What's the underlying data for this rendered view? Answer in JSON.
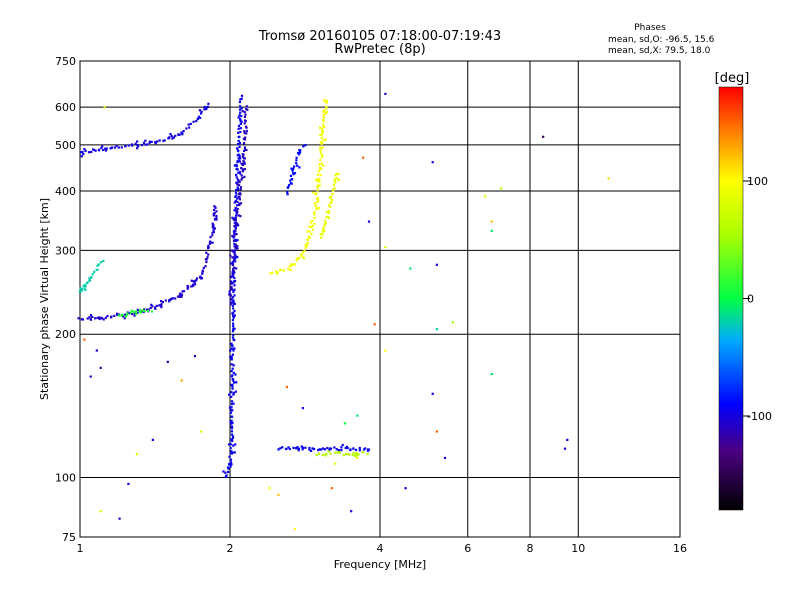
{
  "chart_data": {
    "type": "scatter",
    "title": "Tromsø 20160105 07:18:00-07:19:43",
    "subtitle": "RwPretec (8p)",
    "xlabel": "Frequency [MHz]",
    "ylabel": "Stationary phase Virtual Height [km]",
    "x_scale": "log",
    "y_scale": "log",
    "xlim": [
      1,
      16
    ],
    "ylim": [
      75,
      750
    ],
    "x_ticks": [
      {
        "value": 1,
        "label": "1"
      },
      {
        "value": 2,
        "label": "2"
      },
      {
        "value": 4,
        "label": "4"
      },
      {
        "value": 6,
        "label": "6"
      },
      {
        "value": 8,
        "label": "8"
      },
      {
        "value": 10,
        "label": "10"
      },
      {
        "value": 16,
        "label": "16"
      }
    ],
    "y_ticks": [
      {
        "value": 75,
        "label": "75"
      },
      {
        "value": 100,
        "label": "100"
      },
      {
        "value": 200,
        "label": "200"
      },
      {
        "value": 300,
        "label": "300"
      },
      {
        "value": 400,
        "label": "400"
      },
      {
        "value": 500,
        "label": "500"
      },
      {
        "value": 600,
        "label": "600"
      },
      {
        "value": 750,
        "label": "750"
      }
    ],
    "grid": true,
    "colorbar": {
      "label": "[deg]",
      "range": [
        -180,
        180
      ],
      "ticks": [
        {
          "value": 100,
          "label": "100"
        },
        {
          "value": 0,
          "label": "0"
        },
        {
          "value": -100,
          "label": "-100"
        }
      ]
    },
    "stats": {
      "header": "Phases",
      "line1": "mean, sd,O: -96.5, 15.6",
      "line2": "mean, sd,X:  79.5, 18.0"
    },
    "traces": [
      {
        "phase": -105,
        "points": [
          [
            1.0,
            215
          ],
          [
            1.05,
            216
          ],
          [
            1.1,
            217
          ],
          [
            1.15,
            218
          ],
          [
            1.2,
            219
          ],
          [
            1.25,
            221
          ],
          [
            1.3,
            223
          ],
          [
            1.35,
            225
          ],
          [
            1.4,
            228
          ],
          [
            1.45,
            231
          ],
          [
            1.5,
            235
          ],
          [
            1.55,
            239
          ],
          [
            1.6,
            244
          ],
          [
            1.65,
            250
          ],
          [
            1.7,
            258
          ],
          [
            1.75,
            268
          ],
          [
            1.78,
            280
          ],
          [
            1.8,
            295
          ],
          [
            1.82,
            312
          ],
          [
            1.84,
            330
          ],
          [
            1.86,
            350
          ],
          [
            1.88,
            375
          ]
        ]
      },
      {
        "phase": -100,
        "points": [
          [
            1.0,
            480
          ],
          [
            1.05,
            485
          ],
          [
            1.1,
            490
          ],
          [
            1.15,
            492
          ],
          [
            1.2,
            495
          ],
          [
            1.25,
            498
          ],
          [
            1.3,
            500
          ],
          [
            1.35,
            502
          ],
          [
            1.4,
            505
          ],
          [
            1.45,
            510
          ],
          [
            1.5,
            515
          ],
          [
            1.55,
            520
          ],
          [
            1.6,
            530
          ],
          [
            1.65,
            545
          ],
          [
            1.7,
            560
          ],
          [
            1.75,
            580
          ],
          [
            1.8,
            600
          ],
          [
            1.83,
            615
          ]
        ]
      },
      {
        "phase": -95,
        "points": [
          [
            1.95,
            100
          ],
          [
            1.97,
            102
          ],
          [
            2.0,
            105
          ],
          [
            2.02,
            120
          ],
          [
            2.03,
            250
          ],
          [
            2.04,
            300
          ],
          [
            2.05,
            350
          ],
          [
            2.06,
            400
          ],
          [
            2.07,
            450
          ],
          [
            2.08,
            500
          ],
          [
            2.09,
            550
          ],
          [
            2.1,
            600
          ],
          [
            2.11,
            640
          ]
        ]
      },
      {
        "phase": -110,
        "points": [
          [
            2.0,
            230
          ],
          [
            2.02,
            260
          ],
          [
            2.05,
            320
          ],
          [
            2.08,
            380
          ],
          [
            2.1,
            420
          ],
          [
            2.12,
            460
          ],
          [
            2.14,
            500
          ],
          [
            2.15,
            560
          ],
          [
            2.16,
            610
          ]
        ]
      },
      {
        "phase": 95,
        "points": [
          [
            2.45,
            270
          ],
          [
            2.55,
            273
          ],
          [
            2.65,
            278
          ],
          [
            2.72,
            285
          ],
          [
            2.78,
            293
          ],
          [
            2.82,
            300
          ],
          [
            2.86,
            312
          ],
          [
            2.9,
            325
          ],
          [
            2.93,
            340
          ],
          [
            2.96,
            360
          ],
          [
            2.98,
            380
          ],
          [
            3.0,
            405
          ],
          [
            3.02,
            430
          ],
          [
            3.04,
            460
          ],
          [
            3.06,
            500
          ],
          [
            3.08,
            540
          ],
          [
            3.1,
            580
          ],
          [
            3.12,
            630
          ]
        ]
      },
      {
        "phase": 90,
        "points": [
          [
            3.05,
            320
          ],
          [
            3.1,
            340
          ],
          [
            3.15,
            365
          ],
          [
            3.2,
            390
          ],
          [
            3.25,
            420
          ],
          [
            3.3,
            440
          ]
        ]
      },
      {
        "phase": -90,
        "points": [
          [
            2.6,
            400
          ],
          [
            2.65,
            420
          ],
          [
            2.7,
            450
          ],
          [
            2.75,
            480
          ],
          [
            2.8,
            500
          ]
        ]
      },
      {
        "phase": -95,
        "points": [
          [
            2.5,
            115
          ],
          [
            2.7,
            115
          ],
          [
            2.9,
            115
          ],
          [
            3.1,
            115
          ],
          [
            3.3,
            115
          ],
          [
            3.5,
            115
          ],
          [
            3.7,
            115
          ],
          [
            3.85,
            115
          ]
        ]
      },
      {
        "phase": 60,
        "points": [
          [
            3.0,
            112
          ],
          [
            3.2,
            113
          ],
          [
            3.4,
            112
          ],
          [
            3.6,
            112
          ],
          [
            3.8,
            113
          ]
        ]
      },
      {
        "phase": -20,
        "points": [
          [
            1.0,
            245
          ],
          [
            1.03,
            255
          ],
          [
            1.06,
            265
          ],
          [
            1.08,
            275
          ],
          [
            1.1,
            285
          ]
        ]
      },
      {
        "phase": 10,
        "points": [
          [
            1.2,
            220
          ],
          [
            1.3,
            222
          ],
          [
            1.4,
            224
          ]
        ]
      }
    ],
    "scatter": [
      {
        "x": 1.02,
        "y": 195,
        "phase": 150
      },
      {
        "x": 1.08,
        "y": 185,
        "phase": -100
      },
      {
        "x": 1.1,
        "y": 170,
        "phase": -120
      },
      {
        "x": 1.12,
        "y": 600,
        "phase": 80
      },
      {
        "x": 1.05,
        "y": 163,
        "phase": -110
      },
      {
        "x": 1.3,
        "y": 112,
        "phase": 90
      },
      {
        "x": 1.25,
        "y": 97,
        "phase": -100
      },
      {
        "x": 1.4,
        "y": 120,
        "phase": -100
      },
      {
        "x": 1.5,
        "y": 175,
        "phase": -110
      },
      {
        "x": 1.6,
        "y": 160,
        "phase": 130
      },
      {
        "x": 1.7,
        "y": 180,
        "phase": -110
      },
      {
        "x": 1.75,
        "y": 125,
        "phase": 80
      },
      {
        "x": 1.2,
        "y": 82,
        "phase": -110
      },
      {
        "x": 1.1,
        "y": 85,
        "phase": 80
      },
      {
        "x": 2.4,
        "y": 95,
        "phase": 100
      },
      {
        "x": 2.6,
        "y": 155,
        "phase": 150
      },
      {
        "x": 2.8,
        "y": 140,
        "phase": -100
      },
      {
        "x": 2.7,
        "y": 78,
        "phase": 100
      },
      {
        "x": 3.2,
        "y": 95,
        "phase": 150
      },
      {
        "x": 3.5,
        "y": 85,
        "phase": -100
      },
      {
        "x": 3.6,
        "y": 135,
        "phase": -10
      },
      {
        "x": 3.7,
        "y": 470,
        "phase": 150
      },
      {
        "x": 3.8,
        "y": 345,
        "phase": -100
      },
      {
        "x": 3.9,
        "y": 210,
        "phase": 150
      },
      {
        "x": 4.1,
        "y": 640,
        "phase": -110
      },
      {
        "x": 4.1,
        "y": 185,
        "phase": 100
      },
      {
        "x": 4.1,
        "y": 305,
        "phase": 80
      },
      {
        "x": 4.6,
        "y": 275,
        "phase": -10
      },
      {
        "x": 5.1,
        "y": 460,
        "phase": -100
      },
      {
        "x": 5.2,
        "y": 280,
        "phase": -100
      },
      {
        "x": 5.2,
        "y": 205,
        "phase": -20
      },
      {
        "x": 5.1,
        "y": 150,
        "phase": -100
      },
      {
        "x": 5.2,
        "y": 125,
        "phase": 150
      },
      {
        "x": 5.4,
        "y": 110,
        "phase": -100
      },
      {
        "x": 5.6,
        "y": 212,
        "phase": 50
      },
      {
        "x": 4.5,
        "y": 95,
        "phase": -100
      },
      {
        "x": 6.5,
        "y": 390,
        "phase": 80
      },
      {
        "x": 6.7,
        "y": 345,
        "phase": 120
      },
      {
        "x": 6.7,
        "y": 330,
        "phase": -10
      },
      {
        "x": 7.0,
        "y": 405,
        "phase": 60
      },
      {
        "x": 6.7,
        "y": 165,
        "phase": -10
      },
      {
        "x": 8.5,
        "y": 520,
        "phase": -150
      },
      {
        "x": 9.4,
        "y": 115,
        "phase": -100
      },
      {
        "x": 9.5,
        "y": 120,
        "phase": -100
      },
      {
        "x": 11.5,
        "y": 425,
        "phase": 110
      },
      {
        "x": 3.4,
        "y": 130,
        "phase": 0
      },
      {
        "x": 3.25,
        "y": 107,
        "phase": 90
      },
      {
        "x": 2.5,
        "y": 92,
        "phase": 120
      },
      {
        "x": 3.6,
        "y": 110,
        "phase": 100
      }
    ]
  }
}
